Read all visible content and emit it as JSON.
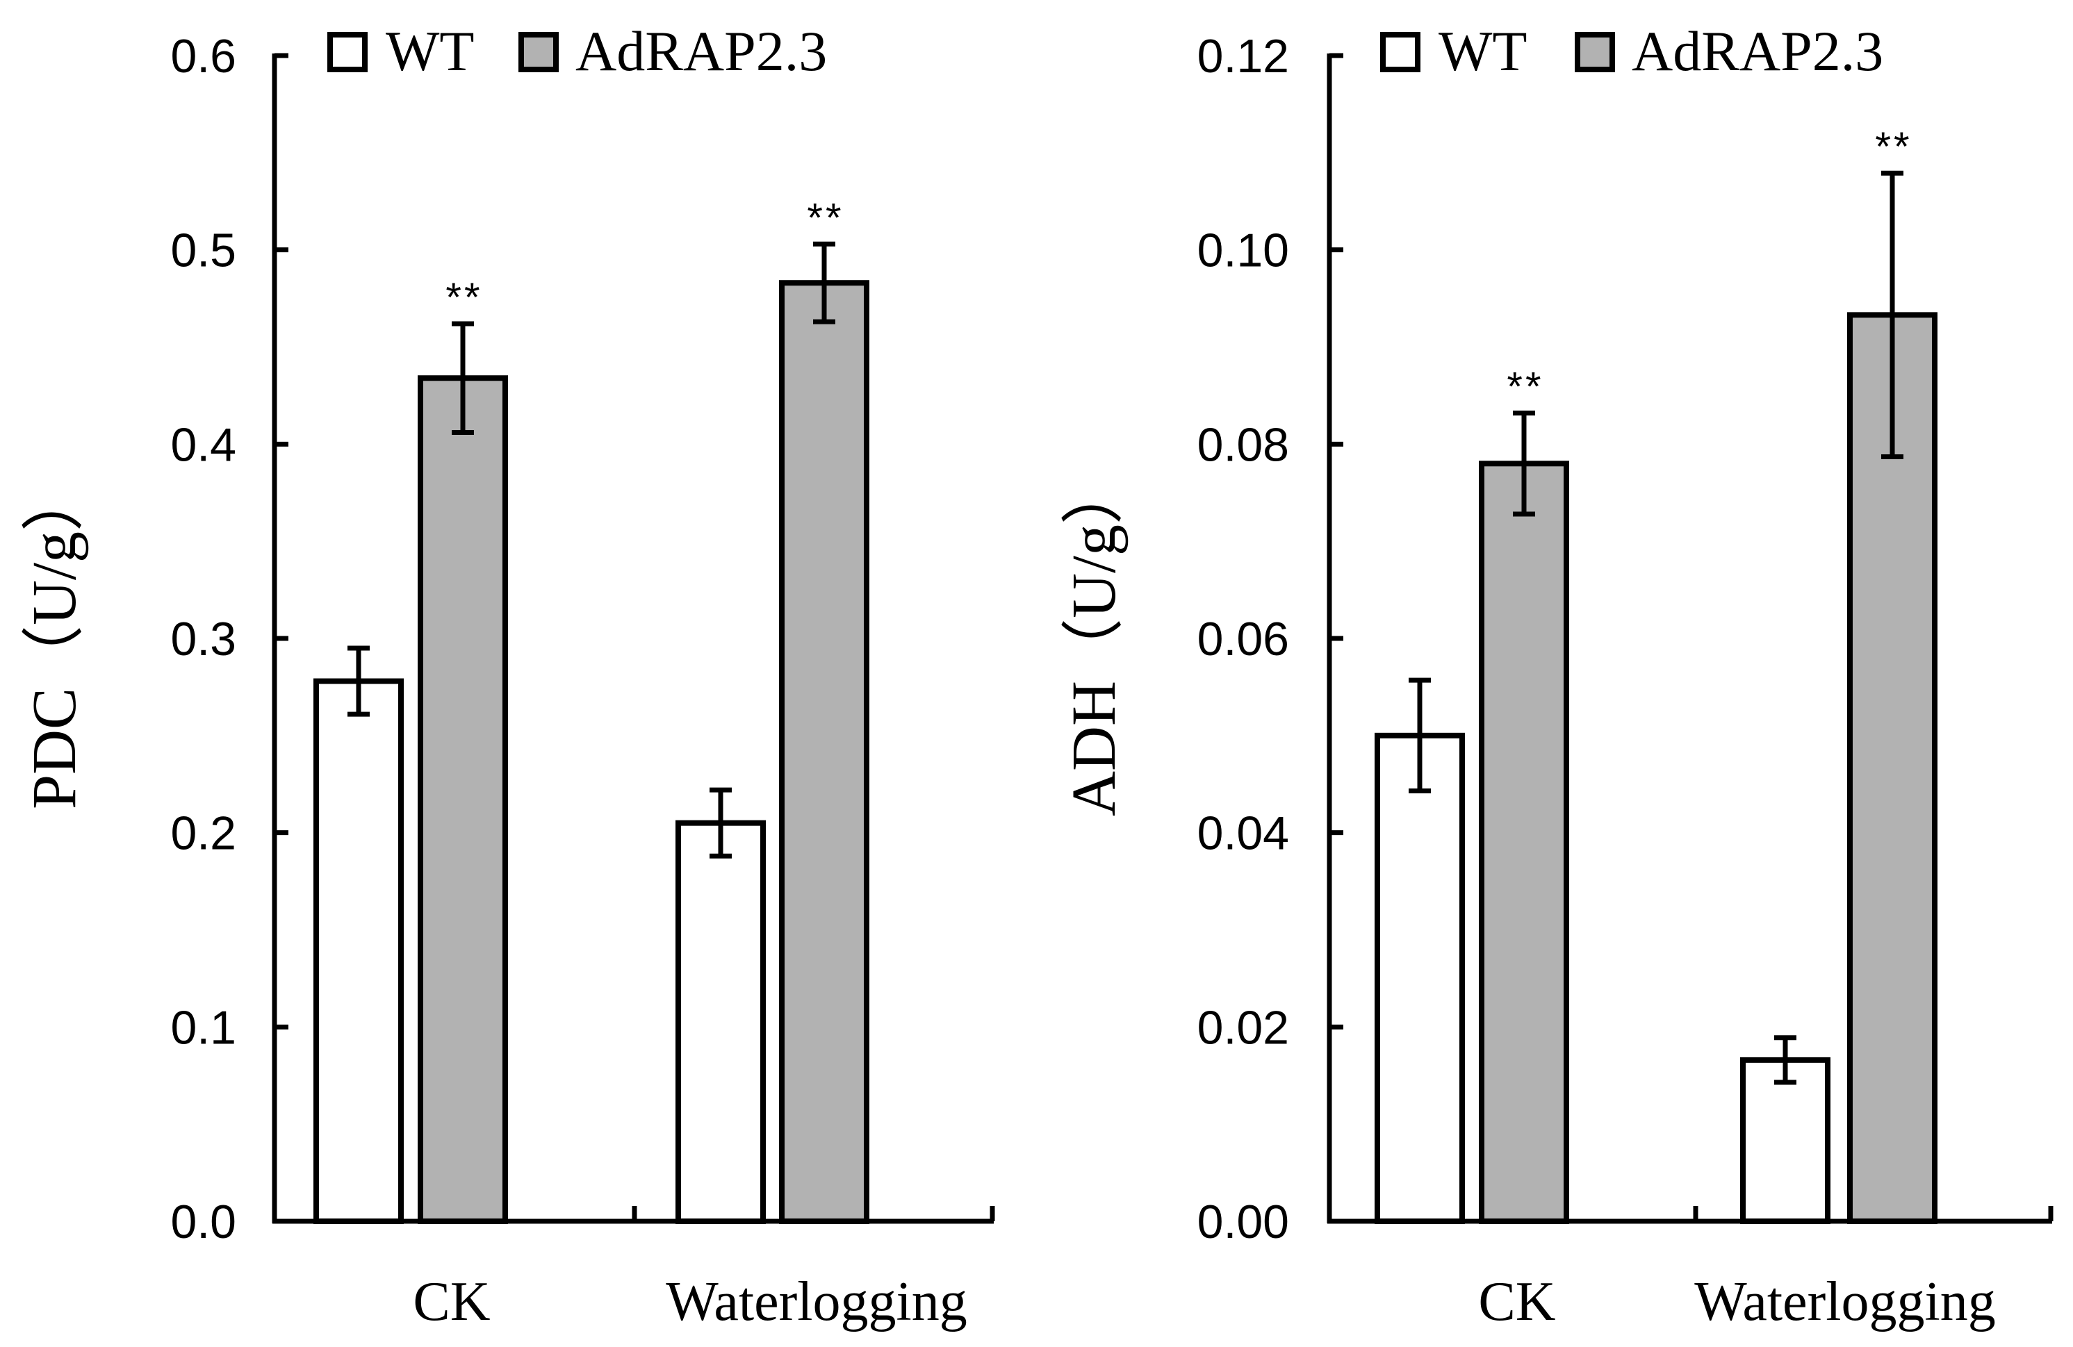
{
  "colors": {
    "wt_fill": "#ffffff",
    "mutant_fill": "#b2b2b2",
    "stroke": "#000000"
  },
  "chart_data": [
    {
      "type": "bar",
      "ylabel": "PDC（U/g）",
      "categories": [
        "CK",
        "Waterlogging"
      ],
      "ylim": [
        0,
        0.6
      ],
      "yticks": [
        "0.0",
        "0.1",
        "0.2",
        "0.3",
        "0.4",
        "0.5",
        "0.6"
      ],
      "legend": [
        "WT",
        "AdRAP2.3"
      ],
      "legend_position": "top",
      "series": [
        {
          "name": "WT",
          "values": [
            0.278,
            0.205
          ],
          "errors": [
            0.017,
            0.017
          ],
          "sig": [
            "",
            ""
          ]
        },
        {
          "name": "AdRAP2.3",
          "values": [
            0.434,
            0.483
          ],
          "errors": [
            0.028,
            0.02
          ],
          "sig": [
            "**",
            "**"
          ]
        }
      ]
    },
    {
      "type": "bar",
      "ylabel": "ADH（U/g）",
      "categories": [
        "CK",
        "Waterlogging"
      ],
      "ylim": [
        0,
        0.12
      ],
      "yticks": [
        "0.00",
        "0.02",
        "0.04",
        "0.06",
        "0.08",
        "0.10",
        "0.12"
      ],
      "legend": [
        "WT",
        "AdRAP2.3"
      ],
      "legend_position": "top",
      "series": [
        {
          "name": "WT",
          "values": [
            0.05,
            0.0166
          ],
          "errors": [
            0.0057,
            0.0023
          ],
          "sig": [
            "",
            ""
          ]
        },
        {
          "name": "AdRAP2.3",
          "values": [
            0.078,
            0.0933
          ],
          "errors": [
            0.0052,
            0.0146
          ],
          "sig": [
            "**",
            "**"
          ]
        }
      ]
    }
  ]
}
